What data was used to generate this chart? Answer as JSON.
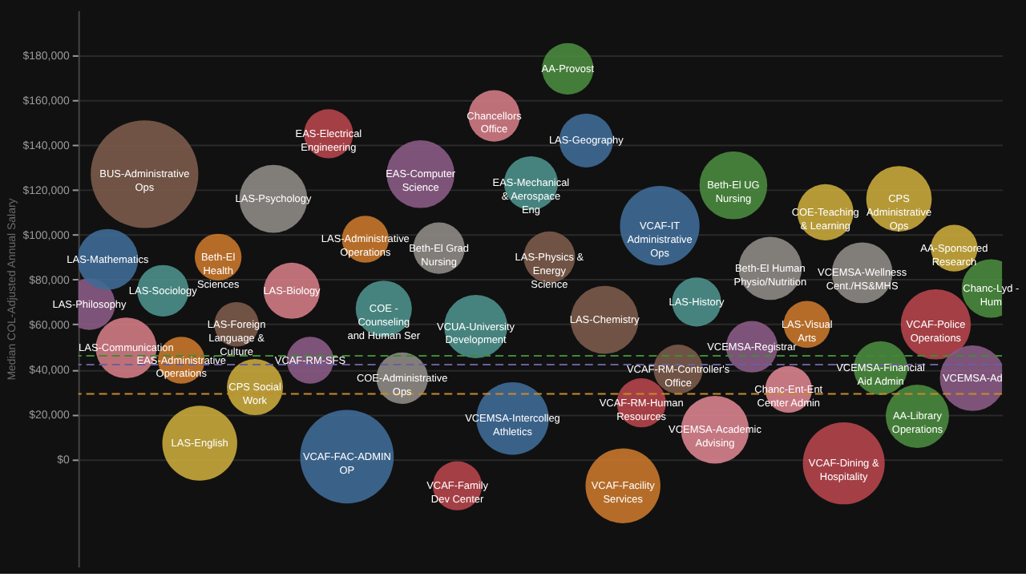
{
  "chart_data": {
    "type": "bubble",
    "ylabel": "Median COL-Adjusted Annual Salary",
    "categories": [
      null,
      null,
      null,
      null,
      null,
      null,
      null,
      null,
      null,
      null,
      null,
      null,
      null,
      null,
      null,
      null,
      null,
      null,
      null,
      null,
      null,
      null,
      null,
      null,
      null,
      null,
      null,
      null,
      null,
      null,
      null,
      null,
      null,
      null,
      null,
      null,
      null,
      null,
      null,
      null,
      null,
      null,
      null,
      null,
      null,
      null,
      null,
      null,
      null,
      null
    ],
    "ylim": [
      -48000,
      200000
    ],
    "yticks": [
      {
        "value": 0,
        "label": "$0"
      },
      {
        "value": 20000,
        "label": "$20,000"
      },
      {
        "value": 40000,
        "label": "$40,000"
      },
      {
        "value": 60000,
        "label": "$60,000"
      },
      {
        "value": 80000,
        "label": "$80,000"
      },
      {
        "value": 100000,
        "label": "$100,000"
      },
      {
        "value": 120000,
        "label": "$120,000"
      },
      {
        "value": 140000,
        "label": "$140,000"
      },
      {
        "value": 160000,
        "label": "$160,000"
      },
      {
        "value": 180000,
        "label": "$180,000"
      }
    ],
    "tick_labels": "y",
    "grid": "y",
    "marker": "circle",
    "ref_lines": [
      {
        "axis": "y",
        "value": 46000,
        "color": "#3f8a3a",
        "line_style": "dashed"
      },
      {
        "axis": "y",
        "value": 42000,
        "color": "#6a5f9e",
        "line_style": "dashed"
      },
      {
        "axis": "y",
        "value": 29000,
        "color": "#c88a2a",
        "line_style": "dashed"
      }
    ],
    "values": [
      69000,
      89000,
      49500,
      127000,
      75000,
      44000,
      7000,
      90000,
      60000,
      32000,
      116000,
      75000,
      44000,
      145000,
      1000,
      98000,
      67000,
      36000,
      127000,
      94000,
      -12000,
      59000,
      153000,
      18000,
      123000,
      90000,
      174000,
      142000,
      62000,
      -12000,
      25000,
      104000,
      40000,
      70000,
      13000,
      122000,
      50000,
      85000,
      31000,
      60000,
      110000,
      -2000,
      83000,
      40500,
      116000,
      19000,
      60000,
      94000,
      36000,
      76000
    ],
    "sizes": [
      0.229,
      0.319,
      0.319,
      1,
      0.229,
      0.189,
      0.484,
      0.189,
      0.171,
      0.272,
      0.397,
      0.272,
      0.189,
      0.208,
      0.756,
      0.189,
      0.272,
      0.229,
      0.397,
      0.229,
      0.208,
      0.345,
      0.229,
      0.454,
      0.25,
      0.229,
      0.229,
      0.25,
      0.397,
      0.484,
      0.208,
      0.546,
      0.208,
      0.208,
      0.397,
      0.397,
      0.229,
      0.345,
      0.189,
      0.189,
      0.272,
      0.579,
      0.319,
      0.25,
      0.37,
      0.345,
      0.425,
      0.189,
      0.37,
      0.295
    ],
    "colors": [
      "#8a5b85",
      "#3f6a96",
      "#d27b84",
      "#7b5b4a",
      "#4d908b",
      "#c8772b",
      "#c8a83c",
      "#c8772b",
      "#7b5b4a",
      "#c8a83c",
      "#8e8985",
      "#d27b84",
      "#8a5b85",
      "#b5454b",
      "#3f6a96",
      "#c8772b",
      "#4d908b",
      "#8e8985",
      "#8a5b85",
      "#8e8985",
      "#b5454b",
      "#4d908b",
      "#d27b84",
      "#3f6a96",
      "#4d908b",
      "#7b5b4a",
      "#4a8a3e",
      "#3f6a96",
      "#7b5b4a",
      "#c8772b",
      "#b5454b",
      "#3f6a96",
      "#7b5b4a",
      "#4d908b",
      "#d8838e",
      "#4a8a3e",
      "#8a5b85",
      "#8e8985",
      "#d8838e",
      "#c8772b",
      "#c8a83c",
      "#b5454b",
      "#8e8985",
      "#4a8a3e",
      "#c8a83c",
      "#4a8a3e",
      "#b5454b",
      "#c8a83c",
      "#8a5b85",
      "#4a8a3e"
    ],
    "annotations": [
      {
        "text": "LAS-Philosophy",
        "y": 69000
      },
      {
        "text": "LAS-Mathematics",
        "y": 89000
      },
      {
        "text": "LAS-Communication",
        "y": 49500
      },
      {
        "text": "BUS-Administrative Ops",
        "y": 127000
      },
      {
        "text": "LAS-Sociology",
        "y": 75000
      },
      {
        "text": "EAS-Administrative Operations",
        "y": 44000
      },
      {
        "text": "LAS-English",
        "y": 7000
      },
      {
        "text": "Beth-El Health Sciences",
        "y": 90000
      },
      {
        "text": "LAS-Foreign Language & Culture",
        "y": 60000
      },
      {
        "text": "CPS Social Work",
        "y": 32000
      },
      {
        "text": "LAS-Psychology",
        "y": 116000
      },
      {
        "text": "LAS-Biology",
        "y": 75000
      },
      {
        "text": "VCAF-RM-SFS",
        "y": 44000
      },
      {
        "text": "EAS-Electrical Engineering",
        "y": 145000
      },
      {
        "text": "VCAF-FAC-ADMIN OP",
        "y": 1000
      },
      {
        "text": "LAS-Administrative Operations",
        "y": 98000
      },
      {
        "text": "COE - Counseling and Human Ser",
        "y": 67000
      },
      {
        "text": "COE-Administrative Ops",
        "y": 36000
      },
      {
        "text": "EAS-Computer Science",
        "y": 127000
      },
      {
        "text": "Beth-El Grad Nursing",
        "y": 94000
      },
      {
        "text": "VCAF-Family Dev Center",
        "y": -12000
      },
      {
        "text": "VCUA-University Development",
        "y": 59000
      },
      {
        "text": "Chancellors Office",
        "y": 153000
      },
      {
        "text": "VCEMSA-Intercolleg Athletics",
        "y": 18000
      },
      {
        "text": "EAS-Mechanical & Aerospace Eng",
        "y": 123000
      },
      {
        "text": "LAS-Physics & Energy Science",
        "y": 90000
      },
      {
        "text": "AA-Provost",
        "y": 174000
      },
      {
        "text": "LAS-Geography",
        "y": 142000
      },
      {
        "text": "LAS-Chemistry",
        "y": 62000
      },
      {
        "text": "VCAF-Facility Services",
        "y": -12000
      },
      {
        "text": "VCAF-RM-Human Resources",
        "y": 25000
      },
      {
        "text": "VCAF-IT Administrative Ops",
        "y": 104000
      },
      {
        "text": "VCAF-RM-Controller's Office",
        "y": 40000
      },
      {
        "text": "LAS-History",
        "y": 70000
      },
      {
        "text": "VCEMSA-Academic Advising",
        "y": 13000
      },
      {
        "text": "Beth-El UG Nursing",
        "y": 122000
      },
      {
        "text": "VCEMSA-Registrar",
        "y": 50000
      },
      {
        "text": "Beth-El Human Physio/Nutrition",
        "y": 85000
      },
      {
        "text": "Chanc-Ent-Ent Center Admin",
        "y": 31000
      },
      {
        "text": "LAS-Visual Arts",
        "y": 60000
      },
      {
        "text": "COE-Teaching & Learning",
        "y": 110000
      },
      {
        "text": "VCAF-Dining & Hospitality",
        "y": -2000
      },
      {
        "text": "VCEMSA-Wellness Cent./HS&MHS",
        "y": 83000
      },
      {
        "text": "VCEMSA-Financial Aid Admin",
        "y": 40500
      },
      {
        "text": "CPS Administrative Ops",
        "y": 116000
      },
      {
        "text": "AA-Library Operations",
        "y": 19000
      },
      {
        "text": "VCAF-Police Operations",
        "y": 60000
      },
      {
        "text": "AA-Sponsored Research",
        "y": 94000
      },
      {
        "text": "VCEMSA-Ad",
        "y": 36000
      },
      {
        "text": "Chanc-Lyd - Hum",
        "y": 76000
      }
    ]
  }
}
